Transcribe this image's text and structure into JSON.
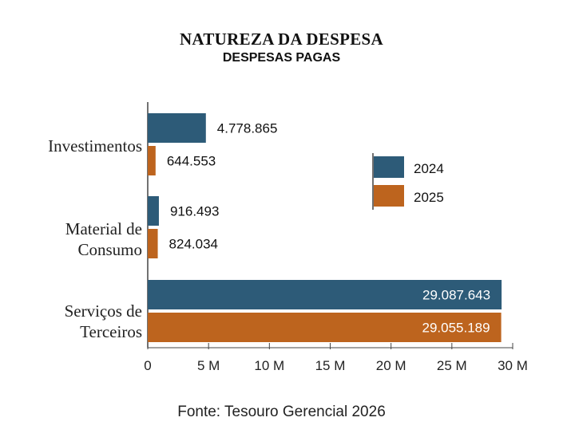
{
  "title": "NATUREZA DA DESPESA",
  "subtitle": "DESPESAS PAGAS",
  "source": "Fonte: Tesouro Gerencial 2026",
  "colors": {
    "2024": "#2d5b78",
    "2025": "#bd641e"
  },
  "chart_data": {
    "type": "bar",
    "orientation": "horizontal",
    "title": "NATUREZA DA DESPESA",
    "subtitle": "DESPESAS PAGAS",
    "categories": [
      "Investimentos",
      "Material de Consumo",
      "Serviços de Terceiros"
    ],
    "category_lines": [
      [
        "Investimentos"
      ],
      [
        "Material de",
        "Consumo"
      ],
      [
        "Serviços de",
        "Terceiros"
      ]
    ],
    "series": [
      {
        "name": "2024",
        "values": [
          4778865,
          916493,
          29087643
        ],
        "labels": [
          "4.778.865",
          "916.493",
          "29.087.643"
        ]
      },
      {
        "name": "2025",
        "values": [
          644553,
          824034,
          29055189
        ],
        "labels": [
          "644.553",
          "824.034",
          "29.055.189"
        ]
      }
    ],
    "xlim": [
      0,
      30000000
    ],
    "xticks": [
      0,
      5000000,
      10000000,
      15000000,
      20000000,
      25000000,
      30000000
    ],
    "xtick_labels": [
      "0",
      "5 M",
      "10 M",
      "15 M",
      "20 M",
      "25 M",
      "30 M"
    ],
    "grid": false,
    "legend": "right"
  }
}
